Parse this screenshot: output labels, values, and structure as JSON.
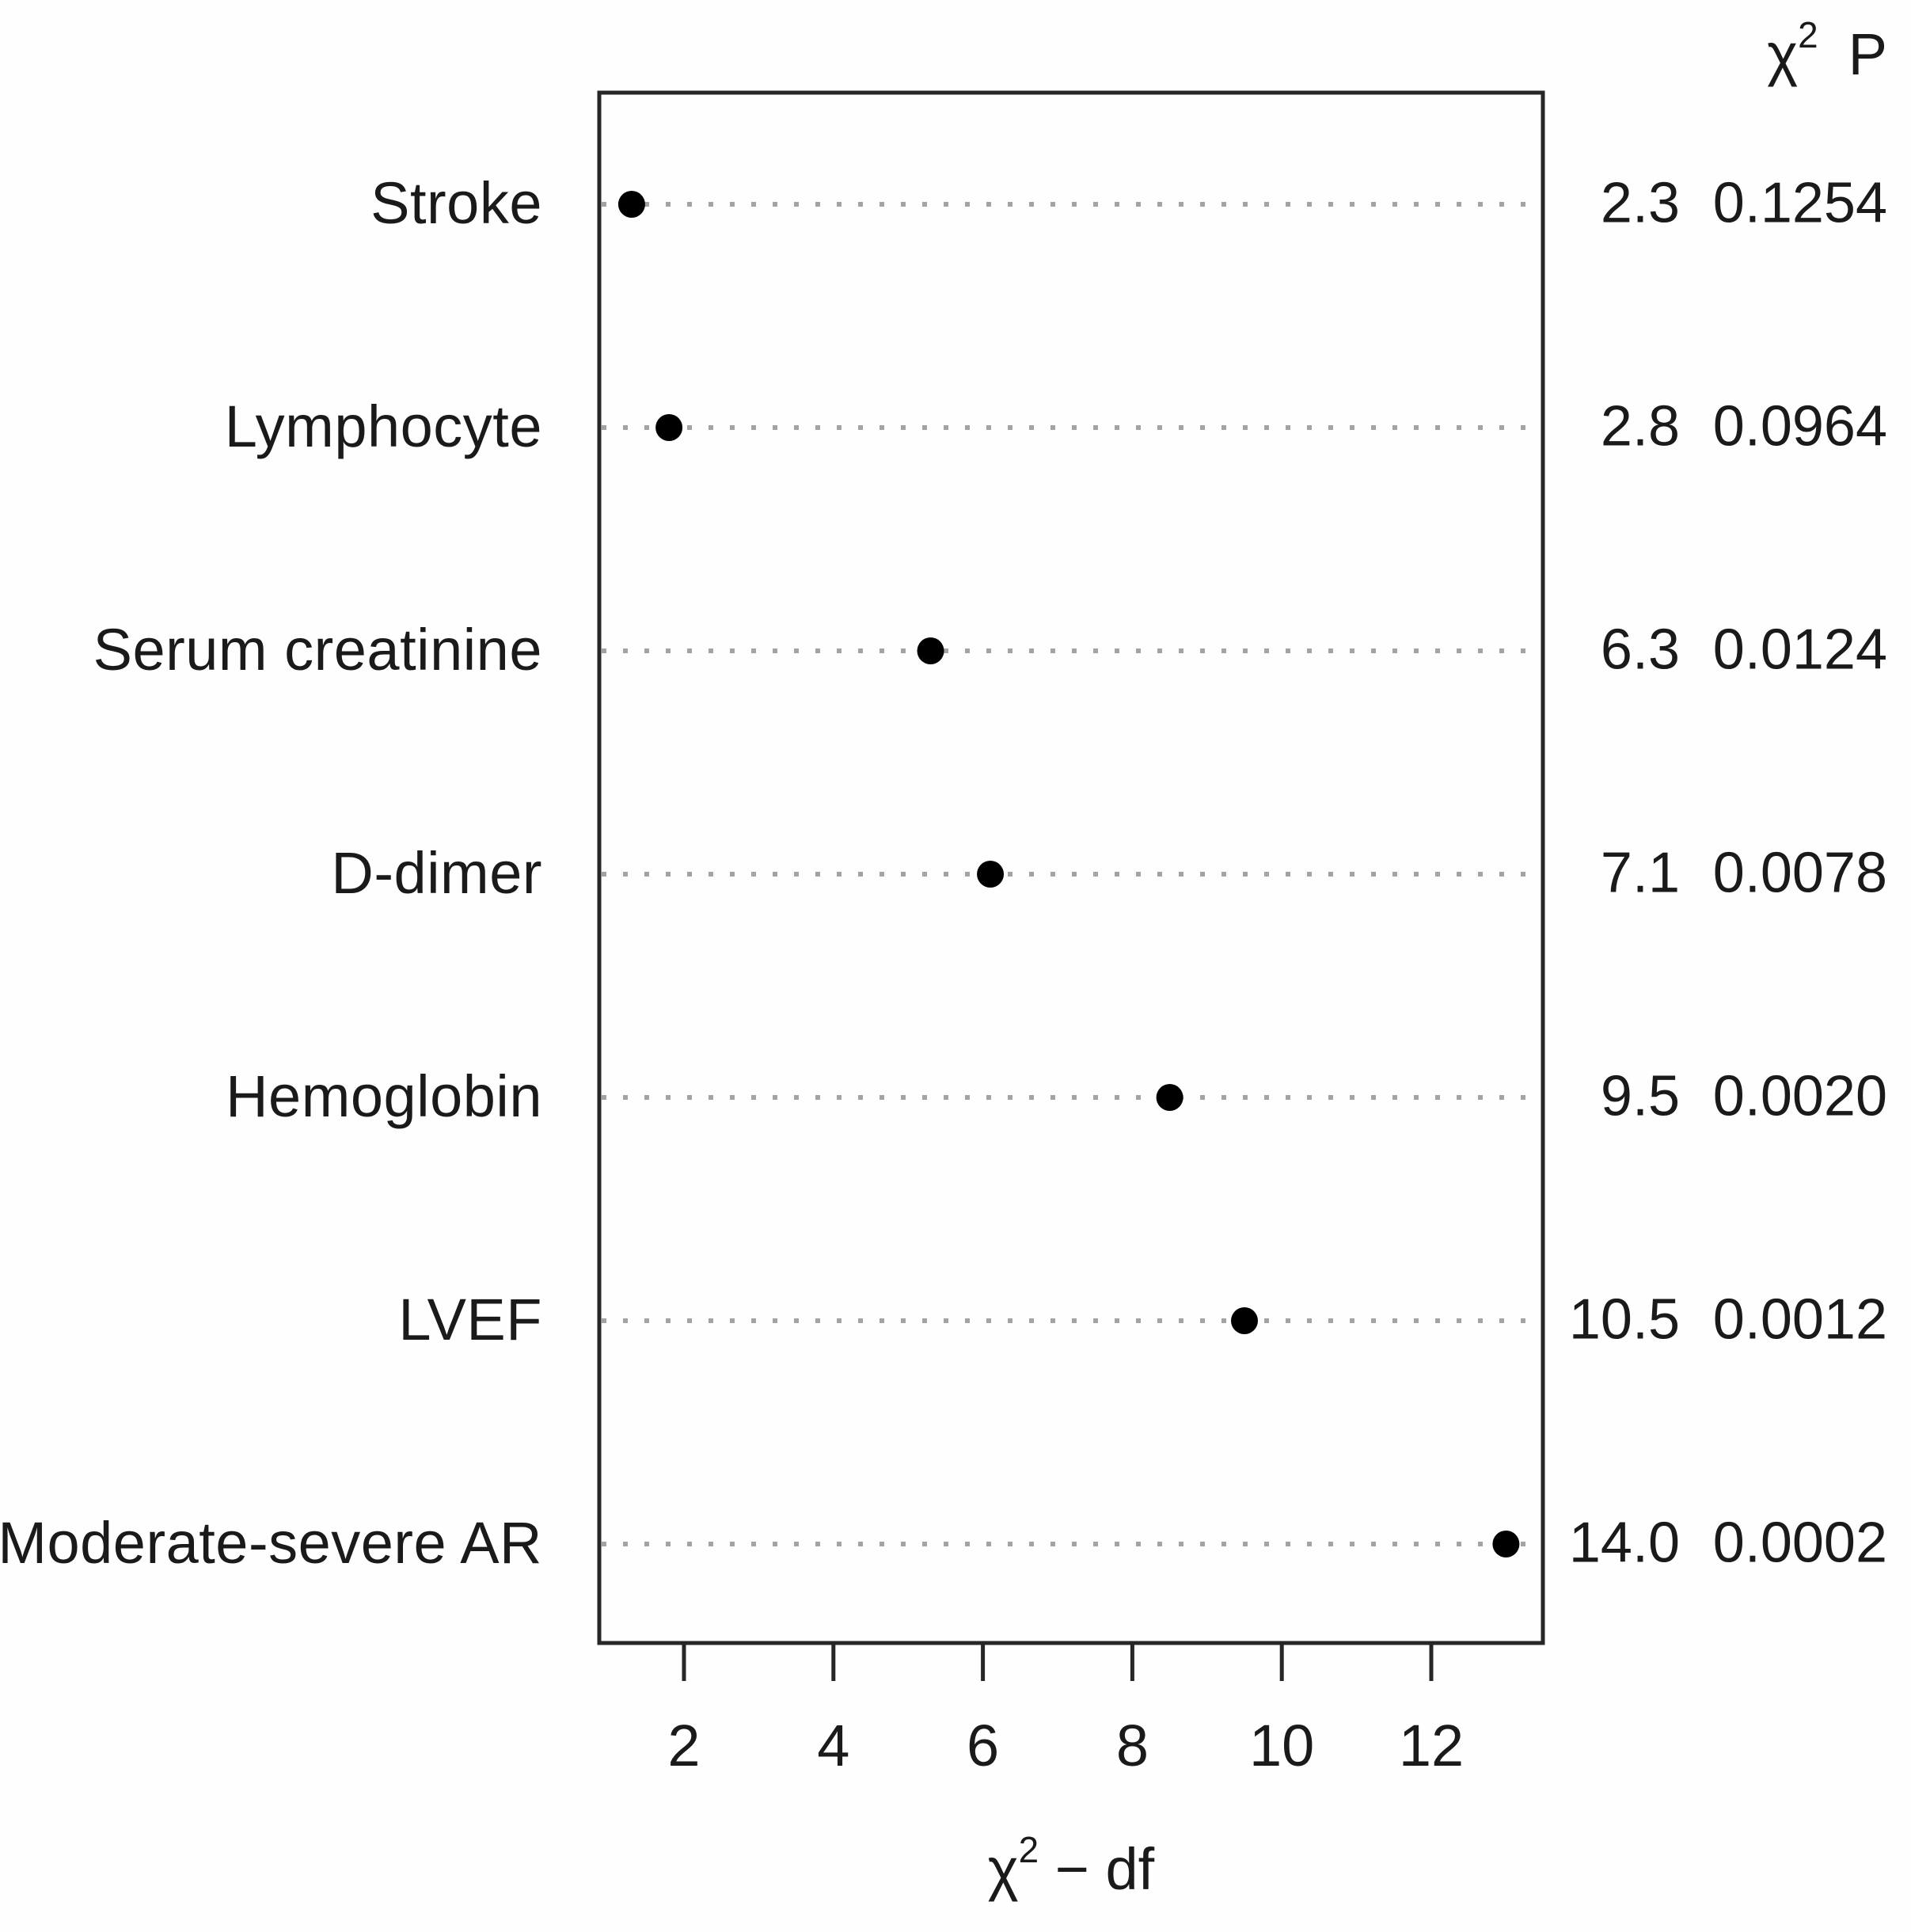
{
  "chart_data": {
    "type": "scatter",
    "subtype": "dot-chart-anova",
    "title": "",
    "xlabel": "χ2 − df",
    "xlabel_parts": {
      "chi": "χ",
      "sup": "2",
      "rest": " − df"
    },
    "header": {
      "chi": "χ",
      "sup": "2",
      "p": "P"
    },
    "x_ticks": [
      2,
      4,
      6,
      8,
      10,
      12
    ],
    "xlim": [
      0.87,
      13.49
    ],
    "grid": "dotted-row-lines",
    "legend_position": "none",
    "dot_color": "#000000",
    "dotted_line_color": "#a3a3a3",
    "box_color": "#262626",
    "rows": [
      {
        "label": "Stroke",
        "chi_sq_minus_df": 1.3,
        "chi_sq": "2.3",
        "p": "0.1254"
      },
      {
        "label": "Lymphocyte",
        "chi_sq_minus_df": 1.8,
        "chi_sq": "2.8",
        "p": "0.0964"
      },
      {
        "label": "Serum creatinine",
        "chi_sq_minus_df": 5.3,
        "chi_sq": "6.3",
        "p": "0.0124"
      },
      {
        "label": "D-dimer",
        "chi_sq_minus_df": 6.1,
        "chi_sq": "7.1",
        "p": "0.0078"
      },
      {
        "label": "Hemoglobin",
        "chi_sq_minus_df": 8.5,
        "chi_sq": "9.5",
        "p": "0.0020"
      },
      {
        "label": "LVEF",
        "chi_sq_minus_df": 9.5,
        "chi_sq": "10.5",
        "p": "0.0012"
      },
      {
        "label": "Moderate-severe AR",
        "chi_sq_minus_df": 13.0,
        "chi_sq": "14.0",
        "p": "0.0002"
      }
    ]
  }
}
